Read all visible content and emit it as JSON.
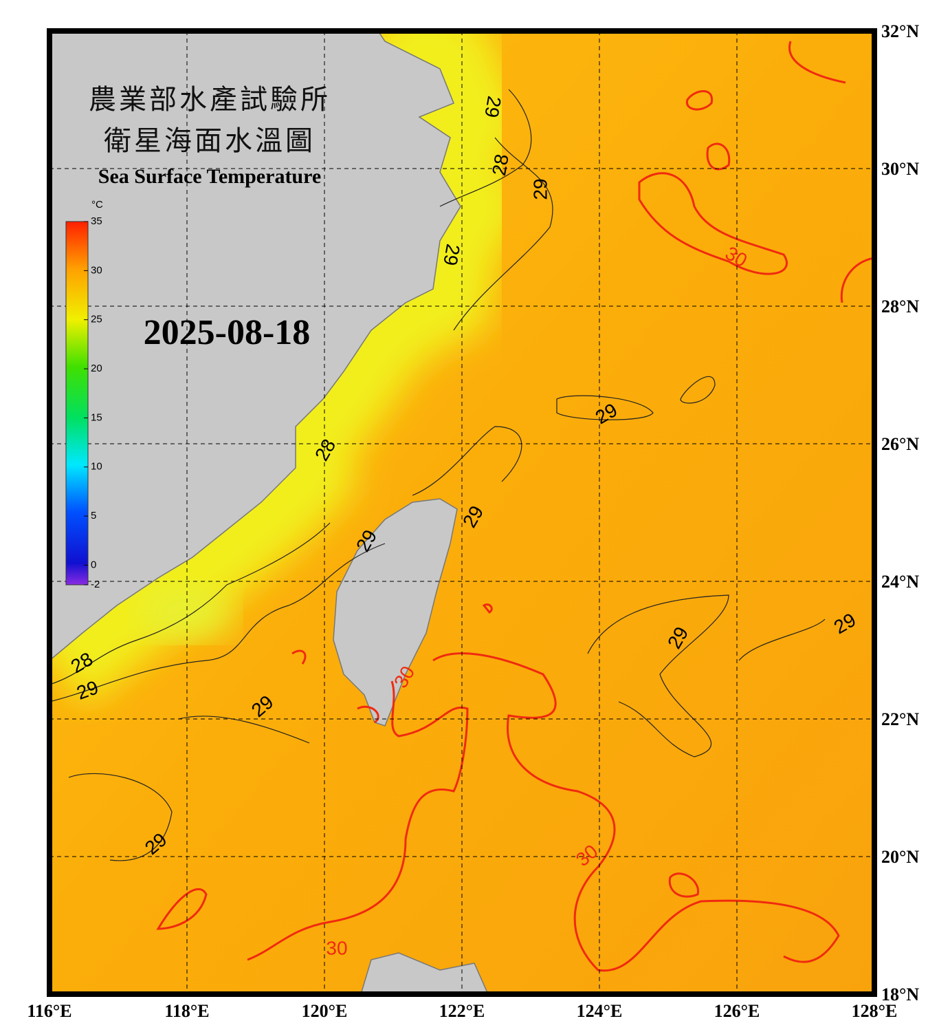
{
  "header": {
    "title_zh_1": "農業部水產試驗所",
    "title_zh_2": "衛星海面水溫圖",
    "title_en": "Sea Surface Temperature"
  },
  "date": "2025-08-18",
  "colorbar": {
    "unit": "°C",
    "range": [
      -2,
      35
    ],
    "ticks": [
      35,
      30,
      25,
      20,
      15,
      10,
      5,
      0,
      -2
    ]
  },
  "axes": {
    "xlim": [
      116,
      128
    ],
    "ylim": [
      18,
      32
    ],
    "xticks": [
      {
        "value": 116,
        "label": "116°E"
      },
      {
        "value": 118,
        "label": "118°E"
      },
      {
        "value": 120,
        "label": "120°E"
      },
      {
        "value": 122,
        "label": "122°E"
      },
      {
        "value": 124,
        "label": "124°E"
      },
      {
        "value": 126,
        "label": "126°E"
      },
      {
        "value": 128,
        "label": "128°E"
      }
    ],
    "yticks": [
      {
        "value": 18,
        "label": "18°N"
      },
      {
        "value": 20,
        "label": "20°N"
      },
      {
        "value": 22,
        "label": "22°N"
      },
      {
        "value": 24,
        "label": "24°N"
      },
      {
        "value": 26,
        "label": "26°N"
      },
      {
        "value": 28,
        "label": "28°N"
      },
      {
        "value": 30,
        "label": "30°N"
      },
      {
        "value": 32,
        "label": "32°N"
      }
    ],
    "grid": true
  },
  "contour_labels": [
    "29",
    "28",
    "29",
    "29",
    "30",
    "29",
    "28",
    "29",
    "29",
    "29",
    "29",
    "28",
    "29",
    "29",
    "30",
    "30",
    "29",
    "30"
  ]
}
